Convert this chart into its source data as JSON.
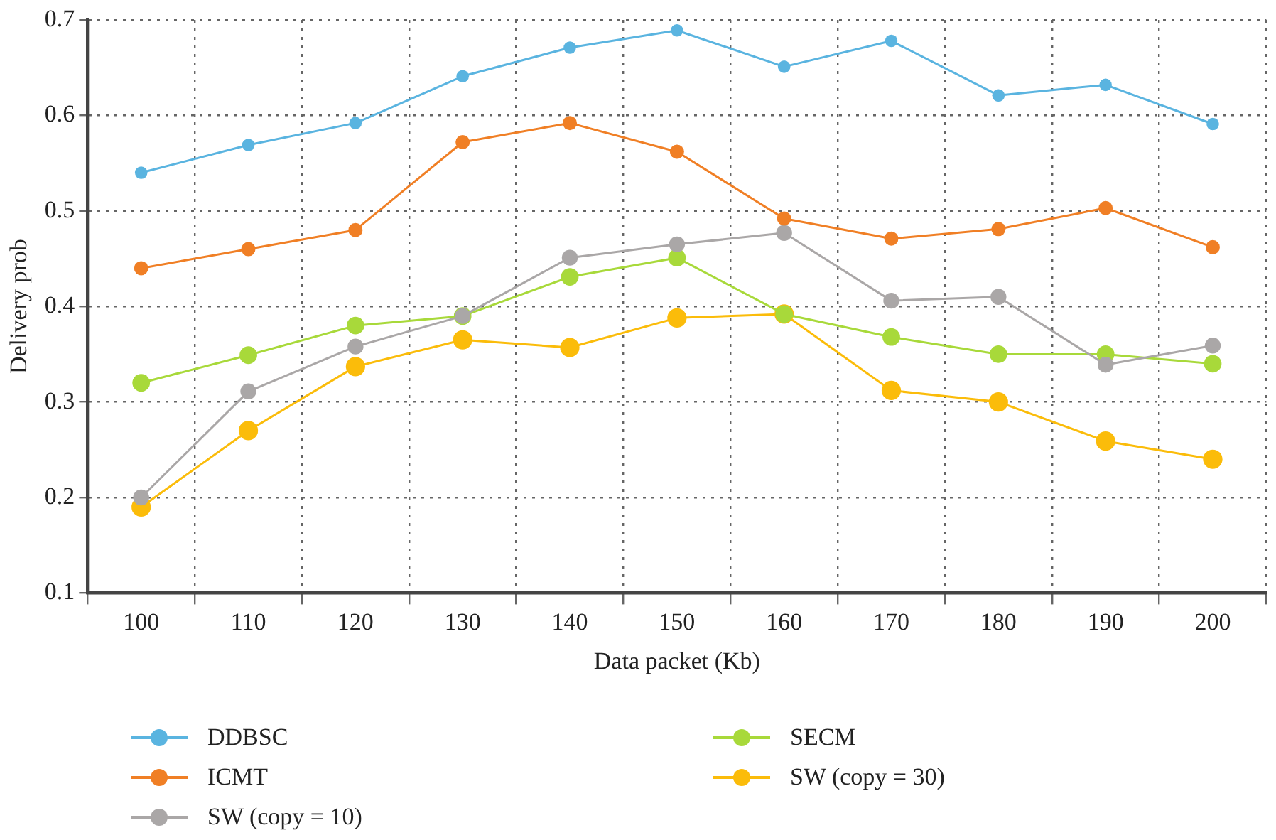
{
  "chart_data": {
    "type": "line",
    "xlabel": "Data packet (Kb)",
    "ylabel": "Delivery prob",
    "categories": [
      "100",
      "110",
      "120",
      "130",
      "140",
      "150",
      "160",
      "170",
      "180",
      "190",
      "200"
    ],
    "ylim": [
      0.1,
      0.7
    ],
    "yticks": [
      0.1,
      0.2,
      0.3,
      0.4,
      0.5,
      0.6,
      0.7
    ],
    "grid": true,
    "legend": "bottom",
    "marker": "circle",
    "line_style": "solid",
    "series": [
      {
        "name": "DDBSC",
        "color": "#5ab4e0",
        "values": [
          0.54,
          0.569,
          0.592,
          0.641,
          0.671,
          0.689,
          0.651,
          0.678,
          0.621,
          0.632,
          0.591
        ]
      },
      {
        "name": "ICMT",
        "color": "#f07f25",
        "values": [
          0.44,
          0.46,
          0.48,
          0.572,
          0.592,
          0.562,
          0.492,
          0.471,
          0.481,
          0.503,
          0.462
        ]
      },
      {
        "name": "SW (copy = 10)",
        "color": "#aaa7a7",
        "values": [
          0.2,
          0.311,
          0.358,
          0.39,
          0.451,
          0.465,
          0.477,
          0.406,
          0.41,
          0.339,
          0.359
        ]
      },
      {
        "name": "SECM",
        "color": "#a8d93a",
        "values": [
          0.32,
          0.349,
          0.38,
          0.39,
          0.431,
          0.451,
          0.392,
          0.368,
          0.35,
          0.35,
          0.34
        ]
      },
      {
        "name": "SW (copy = 30)",
        "color": "#fbbc0a",
        "values": [
          0.19,
          0.27,
          0.337,
          0.365,
          0.357,
          0.388,
          0.392,
          0.312,
          0.3,
          0.259,
          0.24
        ]
      }
    ]
  }
}
